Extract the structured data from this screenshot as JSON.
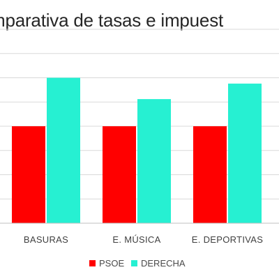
{
  "colors": {
    "psoe": "#ff0000",
    "derecha": "#26f0d2",
    "grid": "#d9d9d9",
    "axis": "#bfbfbf"
  },
  "chart_data": {
    "type": "bar",
    "title": "mparativa de tasas e impuest",
    "xlabel": "",
    "ylabel": "",
    "categories": [
      "BASURAS",
      "E. MÚSICA",
      "E. DEPORTIVAS"
    ],
    "series": [
      {
        "name": "PSOE",
        "values": [
          50,
          50,
          50
        ]
      },
      {
        "name": "DERECHA",
        "values": [
          75,
          64,
          72
        ]
      }
    ],
    "ylim": [
      0,
      100
    ],
    "grid": true,
    "legend": "bottom"
  }
}
